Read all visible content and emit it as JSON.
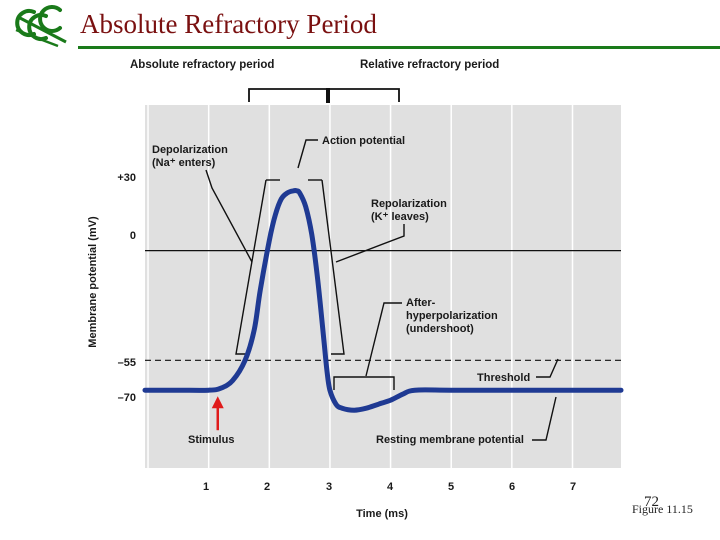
{
  "slide": {
    "title": "Absolute Refractory Period",
    "page_number": "72",
    "figure_label": "Figure 11.15"
  },
  "colors": {
    "title": "#7a1010",
    "rule": "#1a7a1a",
    "logo": "#1a7a1a",
    "curve": "#1f3a93",
    "stimulus_arrow": "#e01b1b",
    "plot_bg": "#e0e0e0"
  },
  "chart_data": {
    "type": "line",
    "xlabel": "Time (ms)",
    "ylabel": "Membrane potential (mV)",
    "x_ticks": [
      1,
      2,
      3,
      4,
      5,
      6,
      7
    ],
    "y_ticks": [
      {
        "value": 30,
        "label": "+30"
      },
      {
        "value": 0,
        "label": "0"
      },
      {
        "value": -55,
        "label": "–55"
      },
      {
        "value": -70,
        "label": "–70"
      }
    ],
    "xlim": [
      -0.05,
      7.8
    ],
    "ylim": [
      -109,
      73
    ],
    "grid": true,
    "series": [
      {
        "x": [
          -0.05,
          0.5,
          1.0,
          1.2,
          1.4,
          1.6,
          1.75,
          1.85,
          2.0,
          2.1,
          2.2,
          2.3,
          2.4,
          2.45,
          2.5,
          2.6,
          2.7,
          2.8,
          2.9,
          2.95,
          3.0,
          3.1,
          3.2,
          3.4,
          3.6,
          3.8,
          4.0,
          4.2,
          4.4,
          5.0,
          6.0,
          7.0,
          7.8
        ],
        "y": [
          -70,
          -70,
          -70,
          -69,
          -65,
          -55,
          -40,
          -20,
          5,
          18,
          26,
          29,
          30,
          30,
          29,
          22,
          8,
          -15,
          -45,
          -60,
          -70,
          -77,
          -79,
          -80,
          -79,
          -77,
          -75,
          -72,
          -70,
          -70,
          -70,
          -70,
          -70
        ]
      }
    ],
    "threshold": {
      "y": -55,
      "style": "dashed",
      "label": "Threshold"
    },
    "zero_line": {
      "y": 0
    },
    "stimulus": {
      "x": 1.15,
      "label": "Stimulus"
    },
    "header_labels": {
      "absolute": "Absolute refractory period",
      "relative": "Relative refractory period"
    },
    "annotations": {
      "action_potential": "Action potential",
      "depolarization": [
        "Depolarization",
        "(Na⁺ enters)"
      ],
      "repolarization": [
        "Repolarization",
        "(K⁺ leaves)"
      ],
      "afterhyperpolarization": [
        "After-",
        "hyperpolarization",
        "(undershoot)"
      ],
      "resting": "Resting membrane potential"
    }
  }
}
